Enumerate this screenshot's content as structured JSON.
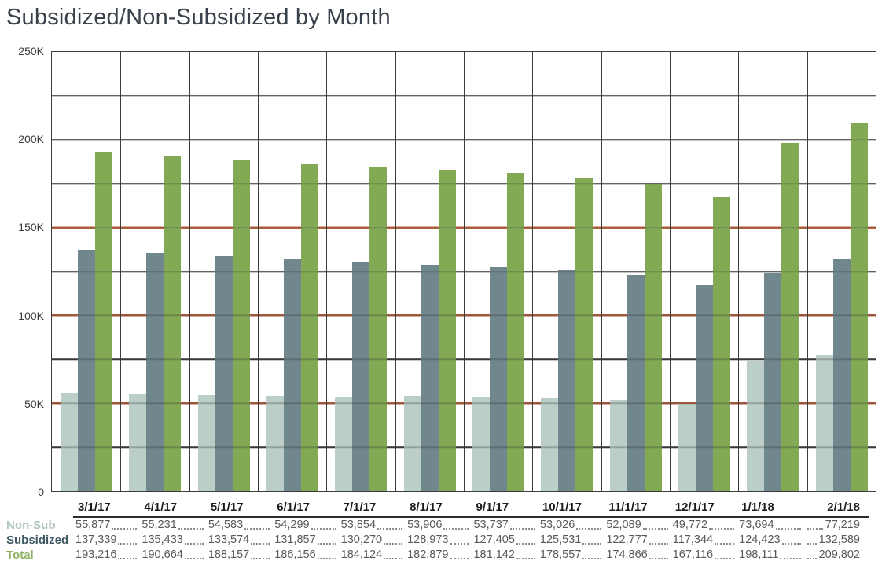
{
  "title": "Subsidized/Non-Subsidized by Month",
  "chart_data": {
    "type": "bar",
    "title": "Subsidized/Non-Subsidized by Month",
    "categories": [
      "3/1/17",
      "4/1/17",
      "5/1/17",
      "6/1/17",
      "7/1/17",
      "8/1/17",
      "9/1/17",
      "10/1/17",
      "11/1/17",
      "12/1/17",
      "1/1/18",
      "2/1/18"
    ],
    "series": [
      {
        "name": "Non-Sub",
        "color": "#bccec8",
        "label_color": "#b2c5bf",
        "values": [
          55877,
          55231,
          54583,
          54299,
          53854,
          53906,
          53737,
          53026,
          52089,
          49772,
          73694,
          77219
        ]
      },
      {
        "name": "Subsidized",
        "color": "#71878e",
        "label_color": "#3f5a64",
        "values": [
          137339,
          135433,
          133574,
          131857,
          130270,
          128973,
          127405,
          125531,
          122777,
          117344,
          124423,
          132589
        ]
      },
      {
        "name": "Total",
        "color": "#82aa55",
        "label_color": "#8db463",
        "values": [
          193216,
          190664,
          188157,
          186156,
          184124,
          182879,
          181142,
          178557,
          174866,
          167116,
          198111,
          209802
        ]
      }
    ],
    "ylim": [
      0,
      250000
    ],
    "yticks": [
      {
        "label": "250K",
        "value": 250000
      },
      {
        "label": "200K",
        "value": 200000
      },
      {
        "label": "150K",
        "value": 150000
      },
      {
        "label": "100K",
        "value": 100000
      },
      {
        "label": "50K",
        "value": 50000
      },
      {
        "label": "0",
        "value": 0
      }
    ],
    "grid": {
      "horizontal_interval": 25000,
      "vertical_per_category": true,
      "color": "#3d3d3d"
    },
    "reference_lines": [
      {
        "value": 50000,
        "color": "#bf6540"
      },
      {
        "value": 100000,
        "color": "#bf6540"
      },
      {
        "value": 150000,
        "color": "#bf6540"
      }
    ],
    "legend_position": "row-labels-in-table-below"
  },
  "table": {
    "columns": [
      "3/1/17",
      "4/1/17",
      "5/1/17",
      "6/1/17",
      "7/1/17",
      "8/1/17",
      "9/1/17",
      "10/1/17",
      "11/1/17",
      "12/1/17",
      "1/1/18",
      "2/1/18"
    ],
    "rows": [
      {
        "label": "Non-Sub",
        "values": [
          "55,877",
          "55,231",
          "54,583",
          "54,299",
          "53,854",
          "53,906",
          "53,737",
          "53,026",
          "52,089",
          "49,772",
          "73,694",
          "77,219"
        ]
      },
      {
        "label": "Subsidized",
        "values": [
          "137,339",
          "135,433",
          "133,574",
          "131,857",
          "130,270",
          "128,973",
          "127,405",
          "125,531",
          "122,777",
          "117,344",
          "124,423",
          "132,589"
        ]
      },
      {
        "label": "Total",
        "values": [
          "193,216",
          "190,664",
          "188,157",
          "186,156",
          "184,124",
          "182,879",
          "181,142",
          "178,557",
          "174,866",
          "167,116",
          "198,111",
          "209,802"
        ]
      }
    ]
  }
}
